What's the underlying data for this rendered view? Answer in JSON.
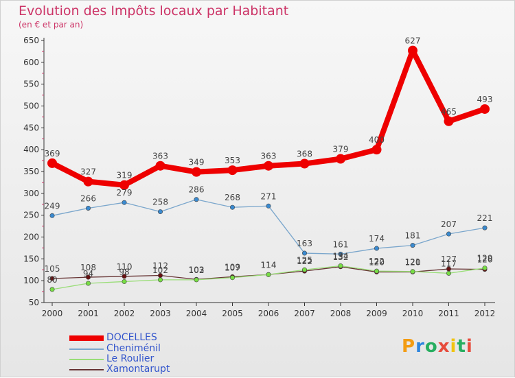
{
  "title": "Evolution des Impôts locaux par Habitant",
  "subtitle": "(en € et par an)",
  "logo": {
    "text": "Proxiti",
    "letters": [
      "P",
      "r",
      "o",
      "x",
      "i",
      "t",
      "i"
    ],
    "colors": [
      "#f39c12",
      "#2e86de",
      "#27ae60",
      "#e74c3c",
      "#f1c40f",
      "#27ae60",
      "#e74c3c"
    ]
  },
  "chart_data": {
    "type": "line",
    "title": "Evolution des Impôts locaux par Habitant",
    "subtitle": "(en € et par an)",
    "x": [
      "2000",
      "2001",
      "2002",
      "2003",
      "2004",
      "2005",
      "2006",
      "2007",
      "2008",
      "2009",
      "2010",
      "2011",
      "2012"
    ],
    "ylim": [
      50,
      650
    ],
    "yticks": [
      50,
      100,
      150,
      200,
      250,
      300,
      350,
      400,
      450,
      500,
      550,
      600,
      650
    ],
    "grid": false,
    "legend_position": "bottom-left",
    "series": [
      {
        "name": "DOCELLES",
        "color": "#ee0000",
        "marker": "#ee0000",
        "width": "thick",
        "values": [
          369,
          327,
          319,
          363,
          349,
          353,
          363,
          368,
          379,
          400,
          627,
          465,
          493
        ],
        "labels": [
          "369",
          "327",
          "319",
          "363",
          "349",
          "353",
          "363",
          "368",
          "379",
          "400",
          "627",
          "465",
          "493"
        ]
      },
      {
        "name": "Cheniménil",
        "color": "#7aa6cc",
        "marker": "#3a8ad0",
        "width": "thin",
        "values": [
          249,
          266,
          279,
          258,
          286,
          268,
          271,
          163,
          161,
          174,
          181,
          207,
          221
        ],
        "labels": [
          "249",
          "266",
          "279",
          "258",
          "286",
          "268",
          "271",
          "163",
          "161",
          "174",
          "181",
          "207",
          "221"
        ]
      },
      {
        "name": "Le Roulier",
        "color": "#99dd77",
        "marker": "#77dd44",
        "width": "thin",
        "values": [
          80,
          94,
          98,
          102,
          102,
          107,
          114,
          125,
          134,
          122,
          121,
          117,
          129
        ],
        "labels": [
          "80",
          "94",
          "98",
          "102",
          "102",
          "107",
          "114",
          "125",
          "134",
          "122",
          "121",
          "117",
          "129"
        ]
      },
      {
        "name": "Xamontarupt",
        "color": "#663333",
        "marker": "#661111",
        "width": "thin",
        "values": [
          105,
          108,
          110,
          112,
          103,
          109,
          114,
          122,
          132,
          120,
          120,
          127,
          126
        ],
        "labels": [
          "105",
          "108",
          "110",
          "112",
          "103",
          "109",
          "114",
          "122",
          "132",
          "120",
          "120",
          "127",
          "126"
        ]
      }
    ]
  }
}
